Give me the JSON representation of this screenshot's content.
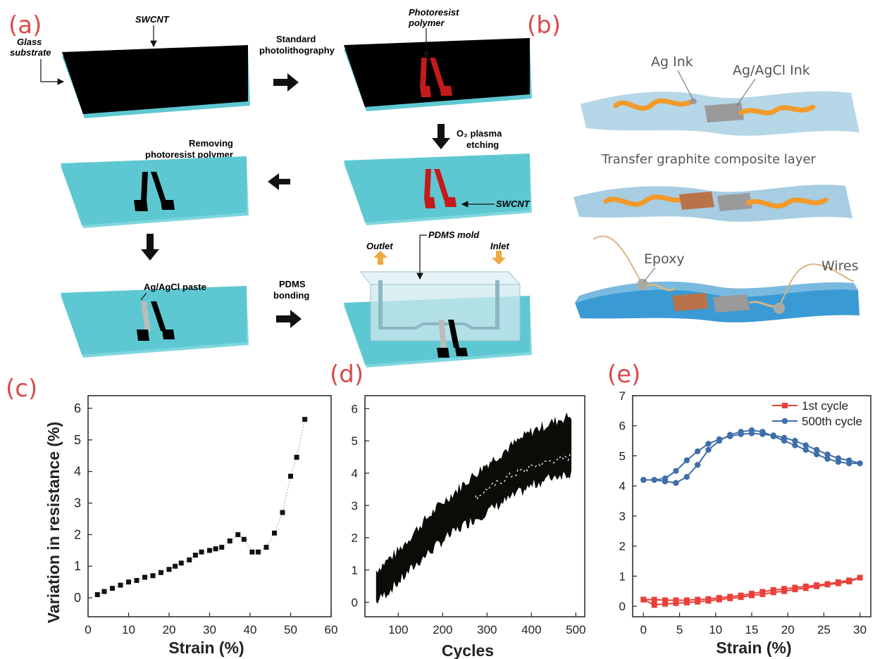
{
  "panels": {
    "a": "(a)",
    "b": "(b)",
    "c": "(c)",
    "d": "(d)",
    "e": "(e)"
  },
  "fig_a": {
    "swcnt_top": "SWCNT",
    "glass_1": "Glass",
    "glass_2": "substrate",
    "step1_1": "Standard",
    "step1_2": "photolithography",
    "photoresist_1": "Photoresist",
    "photoresist_2": "polymer",
    "o2_1": "O₂ plasma",
    "o2_2": "etching",
    "remove_1": "Removing",
    "remove_2": "photoresist polymer",
    "swcnt_mid": "SWCNT",
    "agagcl_paste": "Ag/AgCl paste",
    "pdms_1": "PDMS",
    "pdms_2": "bonding",
    "pdms_mold": "PDMS mold",
    "outlet": "Outlet",
    "inlet": "Inlet"
  },
  "fig_b": {
    "ag_ink": "Ag Ink",
    "agagcl_ink": "Ag/AgCl Ink",
    "transfer": "Transfer graphite composite layer",
    "epoxy": "Epoxy",
    "wires": "Wires"
  },
  "colors": {
    "substrate": "#5ec8d2",
    "swcnt": "#000000",
    "photoresist": "#c41a1a",
    "red_series": "#e8413a",
    "blue_series": "#3f6ea8",
    "panel_letter": "#d94a4a"
  },
  "chart_data": [
    {
      "type": "scatter",
      "panel": "(c)",
      "xlabel": "Strain (%)",
      "ylabel": "Variation in resistance (%)",
      "xlim": [
        0,
        60
      ],
      "ylim": [
        -0.6,
        6.4
      ],
      "xticks": [
        "0",
        "10",
        "20",
        "30",
        "40",
        "50",
        "60"
      ],
      "yticks": [
        "0",
        "1",
        "2",
        "3",
        "4",
        "5",
        "6"
      ],
      "x": [
        2.3,
        4.0,
        6.0,
        8.0,
        10.0,
        12.0,
        14.0,
        16.0,
        18.0,
        20.0,
        21.5,
        23.0,
        25.0,
        26.5,
        28.0,
        30.0,
        31.5,
        33.0,
        35.0,
        37.0,
        38.5,
        40.5,
        42.0,
        44.0,
        46.0,
        48.0,
        50.0,
        51.5,
        53.5
      ],
      "y": [
        0.1,
        0.2,
        0.3,
        0.4,
        0.5,
        0.55,
        0.65,
        0.7,
        0.8,
        0.9,
        1.0,
        1.1,
        1.2,
        1.35,
        1.45,
        1.5,
        1.55,
        1.6,
        1.8,
        2.0,
        1.85,
        1.45,
        1.45,
        1.6,
        2.05,
        2.7,
        3.85,
        4.45,
        5.65
      ]
    },
    {
      "type": "area",
      "panel": "(d)",
      "xlabel": "Cycles",
      "ylabel": "",
      "xlim": [
        25,
        520
      ],
      "ylim": [
        -0.45,
        6.4
      ],
      "xticks": [
        "100",
        "200",
        "300",
        "400",
        "500"
      ],
      "yticks": [
        "0",
        "1",
        "2",
        "3",
        "4",
        "5",
        "6"
      ],
      "x": [
        50,
        100,
        150,
        200,
        250,
        300,
        350,
        400,
        450,
        490
      ],
      "lower": [
        0.0,
        0.6,
        1.3,
        1.9,
        2.4,
        2.8,
        3.2,
        3.6,
        3.9,
        4.0
      ],
      "upper": [
        1.0,
        1.6,
        2.4,
        3.1,
        3.7,
        4.3,
        4.8,
        5.3,
        5.6,
        5.8
      ],
      "center": [
        0.5,
        1.1,
        1.8,
        2.5,
        3.0,
        3.5,
        3.9,
        4.2,
        4.4,
        4.5
      ]
    },
    {
      "type": "line",
      "panel": "(e)",
      "xlabel": "Strain (%)",
      "ylabel": "",
      "xlim": [
        -1.5,
        31.5
      ],
      "ylim": [
        -0.35,
        7.0
      ],
      "xticks": [
        "0",
        "5",
        "10",
        "15",
        "20",
        "25",
        "30"
      ],
      "yticks": [
        "0",
        "1",
        "2",
        "3",
        "4",
        "5",
        "6",
        "7"
      ],
      "legend": "top-right",
      "series": [
        {
          "name": "1st cycle",
          "x": [
            0,
            1.5,
            3,
            4.5,
            6,
            7.5,
            9,
            10.5,
            12,
            13.5,
            15,
            16.5,
            18,
            19.5,
            21,
            22.5,
            24,
            25.5,
            27,
            28.5,
            30,
            28.5,
            27,
            25.5,
            24,
            22.5,
            21,
            19.5,
            18,
            16.5,
            15,
            13.5,
            12,
            10.5,
            9,
            7.5,
            6,
            4.5,
            3,
            1.5,
            0
          ],
          "y": [
            0.22,
            0.22,
            0.2,
            0.2,
            0.2,
            0.22,
            0.24,
            0.28,
            0.32,
            0.36,
            0.42,
            0.48,
            0.54,
            0.58,
            0.62,
            0.66,
            0.7,
            0.74,
            0.8,
            0.86,
            0.95,
            0.82,
            0.76,
            0.72,
            0.66,
            0.6,
            0.56,
            0.5,
            0.46,
            0.4,
            0.36,
            0.3,
            0.26,
            0.22,
            0.18,
            0.15,
            0.12,
            0.1,
            0.08,
            0.04,
            0.22
          ]
        },
        {
          "name": "500th cycle",
          "x": [
            0,
            1.5,
            3,
            4.5,
            6,
            7.5,
            9,
            10.5,
            12,
            13.5,
            15,
            16.5,
            18,
            19.5,
            21,
            22.5,
            24,
            25.5,
            27,
            28.5,
            30,
            28.5,
            27,
            25.5,
            24,
            22.5,
            21,
            19.5,
            18,
            16.5,
            15,
            13.5,
            12,
            10.5,
            9,
            7.5,
            6,
            4.5,
            3,
            1.5,
            0
          ],
          "y": [
            4.2,
            4.2,
            4.25,
            4.5,
            4.85,
            5.15,
            5.4,
            5.55,
            5.65,
            5.72,
            5.75,
            5.72,
            5.68,
            5.6,
            5.5,
            5.35,
            5.2,
            5.05,
            4.92,
            4.85,
            4.75,
            4.75,
            4.8,
            4.9,
            5.05,
            5.2,
            5.35,
            5.5,
            5.65,
            5.8,
            5.85,
            5.8,
            5.7,
            5.5,
            5.2,
            4.7,
            4.3,
            4.1,
            4.15,
            4.2,
            4.2
          ]
        }
      ]
    }
  ]
}
